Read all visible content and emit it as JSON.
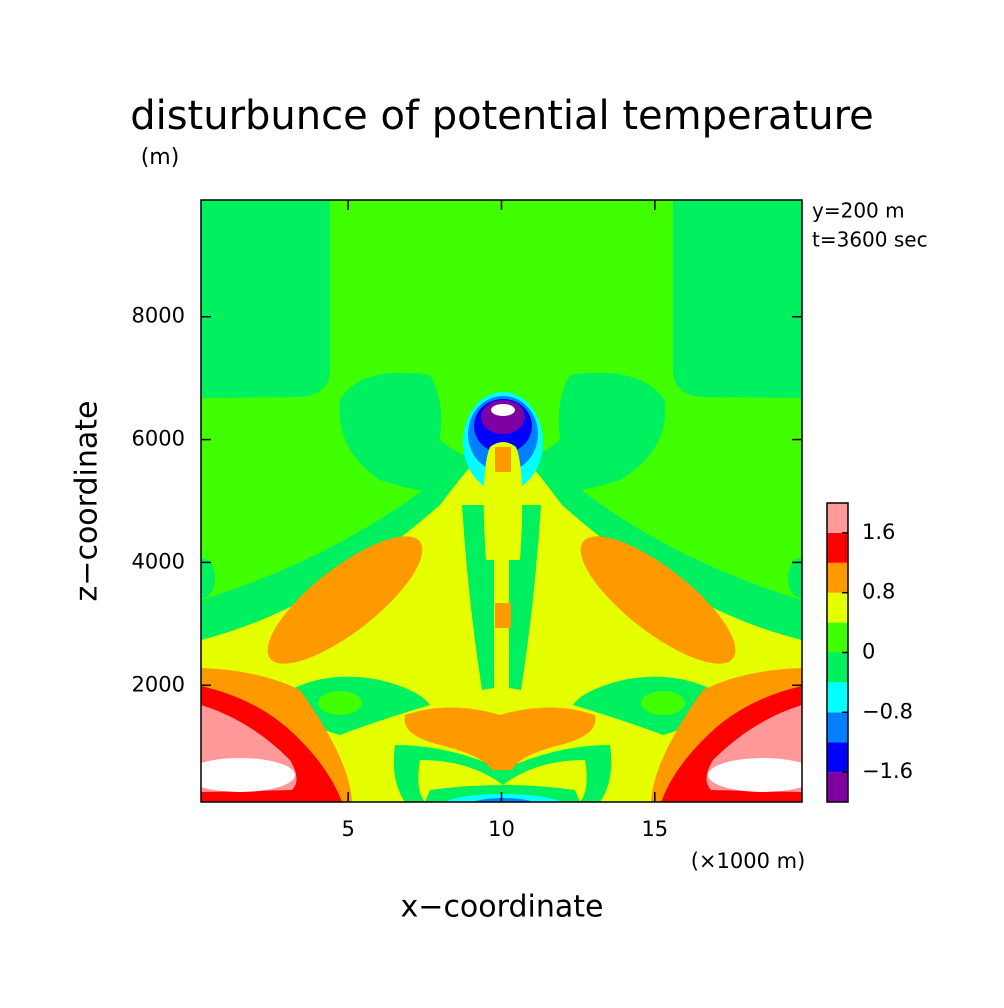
{
  "chart_data": {
    "type": "contour",
    "title": "disturbunce of potential temperature",
    "x_label": "x−coordinate",
    "y_label": "z−coordinate",
    "x_unit": "(×1000 m)",
    "y_unit": "(m)",
    "annotations": [
      "y=200 m",
      "t=3600 sec"
    ],
    "xlim": [
      0.2,
      19.8
    ],
    "ylim": [
      100,
      9900
    ],
    "xticks": [
      5,
      10,
      15
    ],
    "yticks": [
      2000,
      4000,
      6000,
      8000
    ],
    "levels": [
      -2.0,
      -1.6,
      -1.2,
      -0.8,
      -0.4,
      0,
      0.4,
      0.8,
      1.2,
      1.6,
      2.0
    ],
    "colors": [
      "#7f00a0",
      "#0000ff",
      "#0080ff",
      "#00ffff",
      "#00f060",
      "#40ff00",
      "#e6ff00",
      "#ff9900",
      "#ff0000",
      "#ff9999"
    ],
    "extend_color": "#ffffff",
    "colorbar_ticks": [
      {
        "value": -1.6,
        "label": "−1.6"
      },
      {
        "value": -0.8,
        "label": "−0.8"
      },
      0,
      0.8,
      1.6
    ]
  }
}
